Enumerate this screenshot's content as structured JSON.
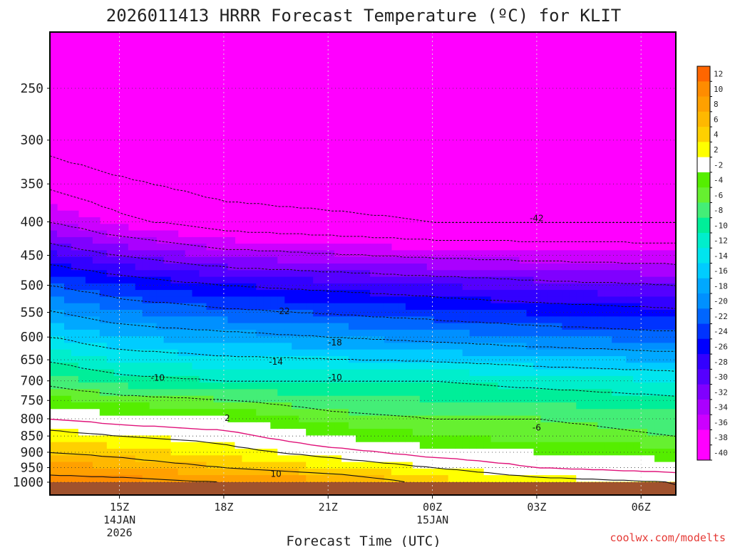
{
  "chart_data": {
    "type": "heatmap",
    "title": "2026011413 HRRR Forecast Temperature (ºC) for KLIT",
    "xlabel": "Forecast Time (UTC)",
    "ylabel": "",
    "credit": "coolwx.com/modelts",
    "y_scale": "log-pressure",
    "y_range_hpa": [
      1020,
      200
    ],
    "x_range_hours": [
      13,
      31
    ],
    "y_ticks": [
      250,
      300,
      350,
      400,
      450,
      500,
      550,
      600,
      650,
      700,
      750,
      800,
      850,
      900,
      950,
      1000
    ],
    "x_ticks": [
      {
        "hour": 15,
        "lines": [
          "15Z",
          "14JAN",
          "2026"
        ]
      },
      {
        "hour": 18,
        "lines": [
          "18Z"
        ]
      },
      {
        "hour": 21,
        "lines": [
          "21Z"
        ]
      },
      {
        "hour": 24,
        "lines": [
          "00Z",
          "15JAN"
        ]
      },
      {
        "hour": 27,
        "lines": [
          "03Z"
        ]
      },
      {
        "hour": 30,
        "lines": [
          "06Z"
        ]
      }
    ],
    "colorbar": {
      "levels": [
        12,
        10,
        8,
        6,
        4,
        2,
        -2,
        -4,
        -6,
        -8,
        -10,
        -12,
        -14,
        -16,
        -18,
        -20,
        -22,
        -24,
        -26,
        -28,
        -30,
        -32,
        -34,
        -36,
        -38,
        -40
      ],
      "colors": [
        "#ff6600",
        "#ff8c00",
        "#ffa000",
        "#ffb800",
        "#ffd000",
        "#ffff00",
        "#ffffff",
        "#55ee00",
        "#66f030",
        "#44ee77",
        "#00ee99",
        "#00eecc",
        "#00e5ee",
        "#00ccff",
        "#00a8ff",
        "#0090ff",
        "#0066ff",
        "#0033ff",
        "#0000ff",
        "#3300ff",
        "#5500ff",
        "#8000ff",
        "#aa00ff",
        "#cc00ff",
        "#ff00ff",
        "#ff00ff"
      ]
    },
    "isotherm_labels": [
      "-42",
      "-22",
      "-18",
      "-14",
      "-10",
      "-10",
      "-6",
      "2",
      "10"
    ],
    "bands_by_hour": {
      "hours": [
        13,
        15,
        18,
        21,
        24,
        27,
        31
      ],
      "temperature_by_pressure_hpa": [
        {
          "p": 1000,
          "t": [
            11,
            11,
            10,
            9,
            5,
            3,
            2
          ]
        },
        {
          "p": 950,
          "t": [
            9,
            8,
            6,
            4,
            2,
            0,
            -1
          ]
        },
        {
          "p": 900,
          "t": [
            6,
            5,
            3,
            1,
            -1,
            -2,
            -3
          ]
        },
        {
          "p": 850,
          "t": [
            3,
            2,
            1,
            -2,
            -4,
            -5,
            -6
          ]
        },
        {
          "p": 800,
          "t": [
            0,
            -1,
            -2,
            -5,
            -6,
            -6,
            -7
          ]
        },
        {
          "p": 700,
          "t": [
            -7,
            -9,
            -10,
            -10,
            -10,
            -11,
            -12
          ]
        },
        {
          "p": 600,
          "t": [
            -14,
            -16,
            -17,
            -18,
            -19,
            -20,
            -21
          ]
        },
        {
          "p": 500,
          "t": [
            -22,
            -24,
            -26,
            -27,
            -28,
            -29,
            -30
          ]
        },
        {
          "p": 400,
          "t": [
            -34,
            -37,
            -40,
            -41,
            -42,
            -42,
            -42
          ]
        },
        {
          "p": 300,
          "t": [
            -44,
            -46,
            -48,
            -48,
            -48,
            -48,
            -48
          ]
        }
      ]
    }
  }
}
